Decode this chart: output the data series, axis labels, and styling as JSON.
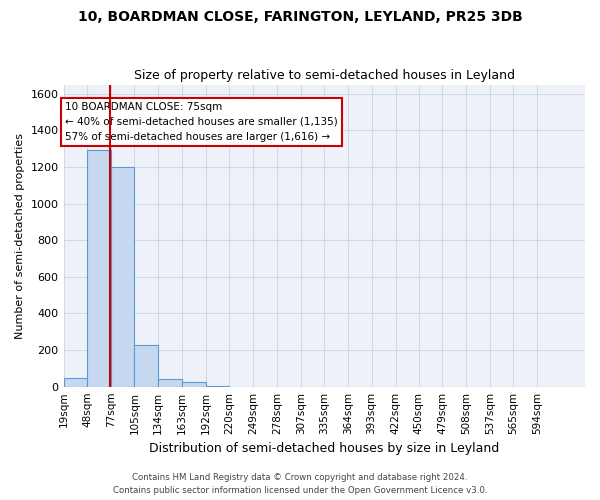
{
  "title1": "10, BOARDMAN CLOSE, FARINGTON, LEYLAND, PR25 3DB",
  "title2": "Size of property relative to semi-detached houses in Leyland",
  "xlabel": "Distribution of semi-detached houses by size in Leyland",
  "ylabel": "Number of semi-detached properties",
  "footer1": "Contains HM Land Registry data © Crown copyright and database right 2024.",
  "footer2": "Contains public sector information licensed under the Open Government Licence v3.0.",
  "annotation_title": "10 BOARDMAN CLOSE: 75sqm",
  "annotation_line1": "← 40% of semi-detached houses are smaller (1,135)",
  "annotation_line2": "57% of semi-detached houses are larger (1,616) →",
  "property_size": 75,
  "bar_labels": [
    "19sqm",
    "48sqm",
    "77sqm",
    "105sqm",
    "134sqm",
    "163sqm",
    "192sqm",
    "220sqm",
    "249sqm",
    "278sqm",
    "307sqm",
    "335sqm",
    "364sqm",
    "393sqm",
    "422sqm",
    "450sqm",
    "479sqm",
    "508sqm",
    "537sqm",
    "565sqm",
    "594sqm"
  ],
  "bar_edges": [
    19,
    48,
    77,
    105,
    134,
    163,
    192,
    220,
    249,
    278,
    307,
    335,
    364,
    393,
    422,
    450,
    479,
    508,
    537,
    565,
    594,
    623
  ],
  "bar_heights": [
    50,
    1290,
    1200,
    230,
    40,
    25,
    5,
    0,
    0,
    0,
    0,
    0,
    0,
    0,
    0,
    0,
    0,
    0,
    0,
    0,
    0
  ],
  "bar_color": "#c5d8f0",
  "bar_edge_color": "#5b9bd5",
  "grid_color": "#d0d8e8",
  "background_color": "#eef2f8",
  "vline_color": "#cc0000",
  "annotation_box_color": "#ffffff",
  "annotation_box_edge": "#cc0000",
  "ylim": [
    0,
    1650
  ],
  "yticks": [
    0,
    200,
    400,
    600,
    800,
    1000,
    1200,
    1400,
    1600
  ]
}
